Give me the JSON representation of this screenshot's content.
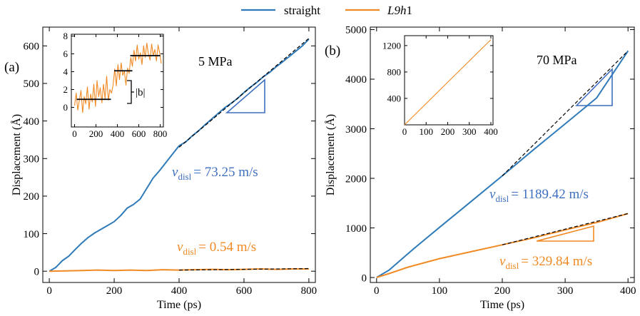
{
  "legend": {
    "straight_label": "straight",
    "l9h1_italic": "L9h",
    "l9h1_suffix": "1"
  },
  "colors": {
    "straight": "#2f7bb9",
    "l9h1": "#f08a24",
    "triangle": "#3f6fc0",
    "fit": "#000000"
  },
  "panel_a": {
    "tag": "(a)",
    "stress": "5 MPa",
    "v_sym": "v",
    "v_sub": "disl",
    "v_straight": "=  73.25 m/s",
    "v_l9h1": "=  0.54 m/s",
    "burgers_label": "|b|"
  },
  "panel_b": {
    "tag": "(b)",
    "stress": "70 MPa",
    "v_sym": "v",
    "v_sub": "disl",
    "v_straight": "=  1189.42 m/s",
    "v_l9h1": "= 329.84 m/s"
  },
  "chart_data": [
    {
      "id": "panel_a_main",
      "type": "line",
      "xlabel": "Time (ps)",
      "ylabel": "Displacement (Å)",
      "xlim": [
        -20,
        820
      ],
      "ylim": [
        -30,
        650
      ],
      "xticks": [
        0,
        200,
        400,
        600,
        800
      ],
      "yticks": [
        0,
        100,
        200,
        300,
        400,
        500,
        600
      ],
      "series": [
        {
          "name": "straight",
          "x": [
            0,
            20,
            40,
            60,
            80,
            100,
            120,
            140,
            160,
            180,
            200,
            220,
            240,
            260,
            280,
            300,
            320,
            340,
            360,
            380,
            400,
            420,
            440,
            460,
            480,
            500,
            520,
            540,
            560,
            580,
            600,
            620,
            640,
            660,
            680,
            700,
            720,
            740,
            760,
            780,
            800
          ],
          "y": [
            0,
            10,
            28,
            40,
            58,
            75,
            90,
            102,
            112,
            122,
            132,
            148,
            168,
            178,
            192,
            220,
            248,
            268,
            290,
            312,
            334,
            344,
            360,
            374,
            390,
            405,
            420,
            435,
            447,
            460,
            476,
            490,
            503,
            518,
            530,
            545,
            558,
            572,
            586,
            600,
            618
          ]
        },
        {
          "name": "L9h1",
          "x": [
            0,
            50,
            100,
            150,
            200,
            250,
            300,
            350,
            400,
            450,
            500,
            550,
            600,
            650,
            700,
            750,
            800
          ],
          "y": [
            0,
            1,
            2,
            3,
            2,
            3,
            2,
            4,
            3,
            4,
            5,
            4,
            5,
            6,
            5,
            6,
            6
          ]
        }
      ],
      "fits": [
        {
          "name": "straight fit",
          "x": [
            400,
            800
          ],
          "y": [
            330,
            620
          ]
        },
        {
          "name": "L9h1 fit",
          "x": [
            400,
            800
          ],
          "y": [
            3,
            7
          ]
        }
      ]
    },
    {
      "id": "panel_a_inset",
      "type": "line",
      "xlim": [
        -30,
        830
      ],
      "ylim": [
        -2.2,
        8.2
      ],
      "xticks": [
        0,
        200,
        400,
        600,
        800
      ],
      "yticks": [
        0,
        2,
        4,
        6,
        8
      ],
      "yticklabels": [
        "0",
        "2",
        "4",
        "6",
        "8"
      ],
      "series": [
        {
          "name": "L9h1 (5 MPa)",
          "x": [
            0,
            15,
            30,
            45,
            60,
            75,
            90,
            105,
            120,
            135,
            150,
            165,
            180,
            195,
            210,
            225,
            240,
            255,
            270,
            285,
            300,
            315,
            330,
            345,
            360,
            375,
            390,
            405,
            420,
            435,
            450,
            465,
            480,
            495,
            510,
            525,
            540,
            555,
            570,
            585,
            600,
            615,
            630,
            645,
            660,
            675,
            690,
            705,
            720,
            735,
            750,
            765,
            780,
            795,
            810
          ],
          "y": [
            0.2,
            1.6,
            -0.3,
            0.8,
            1.9,
            -0.6,
            1.2,
            0.4,
            2.3,
            -0.2,
            1.5,
            0.6,
            2.6,
            0.1,
            3.0,
            1.2,
            2.2,
            0.5,
            2.6,
            1.0,
            3.5,
            0.8,
            2.0,
            1.6,
            2.5,
            4.3,
            2.4,
            4.8,
            3.1,
            5.0,
            3.6,
            4.1,
            2.5,
            4.4,
            3.8,
            5.6,
            4.6,
            6.4,
            5.2,
            7.0,
            5.4,
            6.1,
            4.8,
            6.9,
            5.6,
            7.2,
            6.0,
            5.3,
            7.1,
            5.8,
            6.5,
            5.2,
            7.0,
            6.1,
            4.9
          ]
        }
      ],
      "steps": [
        {
          "x": [
            20,
            340
          ],
          "y": 0.9
        },
        {
          "x": [
            370,
            540
          ],
          "y": 4.1
        },
        {
          "x": [
            520,
            800
          ],
          "y": 5.8
        }
      ]
    },
    {
      "id": "panel_b_main",
      "type": "line",
      "xlabel": "Time (ps)",
      "ylabel": "Displacement (Å)",
      "xlim": [
        -10,
        410
      ],
      "ylim": [
        -100,
        5050
      ],
      "xticks": [
        0,
        100,
        200,
        300,
        400
      ],
      "yticks": [
        0,
        1000,
        2000,
        3000,
        4000,
        5000
      ],
      "series": [
        {
          "name": "straight",
          "x": [
            0,
            20,
            40,
            60,
            80,
            100,
            150,
            200,
            250,
            300,
            350,
            400
          ],
          "y": [
            0,
            150,
            370,
            590,
            800,
            1010,
            1530,
            2050,
            2580,
            3100,
            3620,
            4570
          ]
        },
        {
          "name": "L9h1",
          "x": [
            0,
            20,
            50,
            100,
            150,
            200,
            250,
            300,
            350,
            400
          ],
          "y": [
            0,
            80,
            210,
            380,
            520,
            660,
            800,
            960,
            1110,
            1290
          ]
        }
      ],
      "fits": [
        {
          "name": "straight fit",
          "x": [
            200,
            400
          ],
          "y": [
            2050,
            4570
          ]
        },
        {
          "name": "L9h1 fit",
          "x": [
            200,
            400
          ],
          "y": [
            660,
            1290
          ]
        }
      ]
    },
    {
      "id": "panel_b_inset",
      "type": "line",
      "xlim": [
        0,
        410
      ],
      "ylim": [
        0,
        1350
      ],
      "xticks": [
        0,
        100,
        200,
        300,
        400
      ],
      "yticks": [
        400,
        800,
        1200
      ],
      "series": [
        {
          "name": "L9h1 (70 MPa)",
          "x": [
            0,
            400
          ],
          "y": [
            0,
            1290
          ]
        }
      ]
    }
  ]
}
